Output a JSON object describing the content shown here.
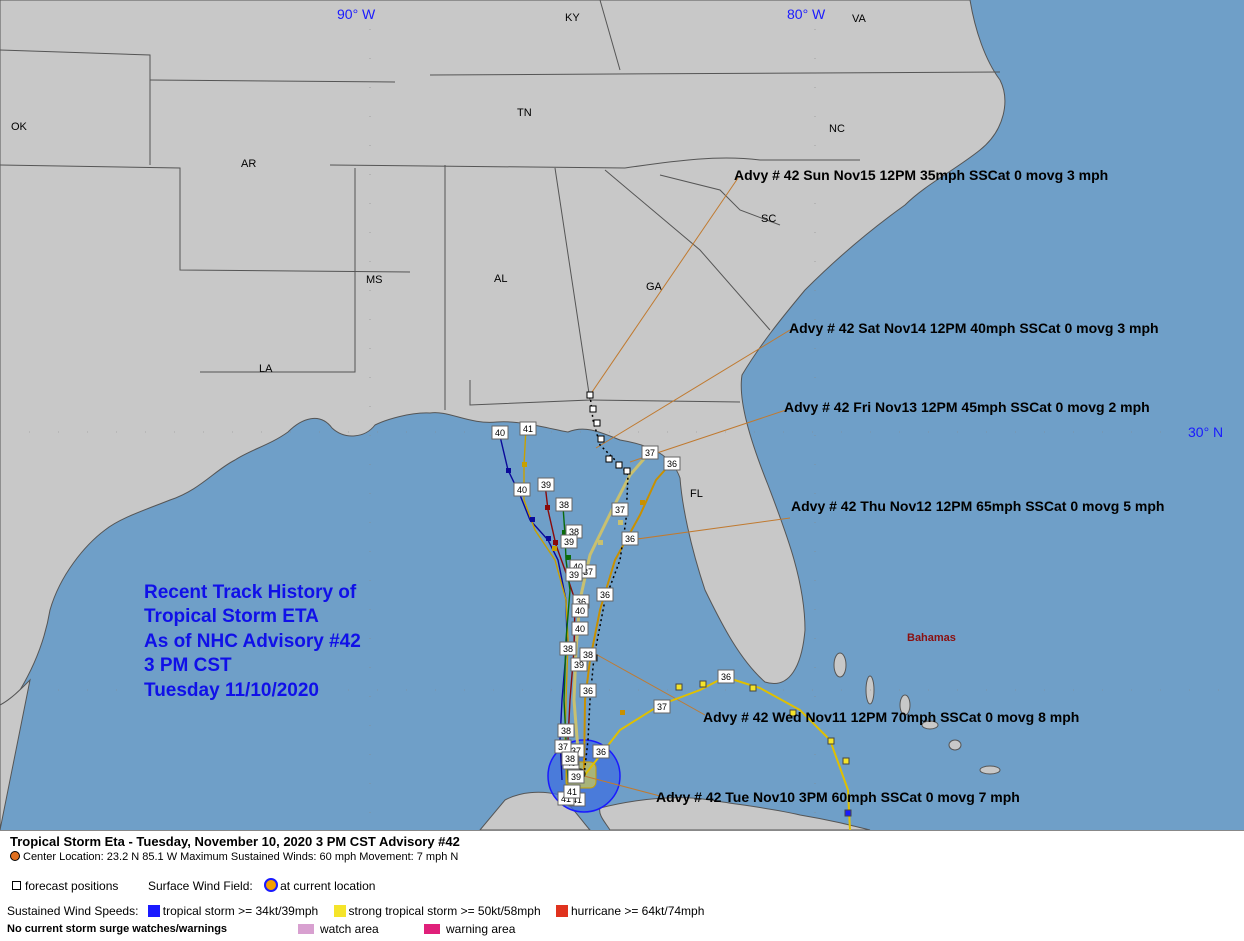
{
  "map": {
    "lon_labels": [
      "90° W",
      "80° W"
    ],
    "lat_labels": [
      "30° N"
    ],
    "state_labels": [
      "KY",
      "VA",
      "OK",
      "TN",
      "NC",
      "AR",
      "SC",
      "MS",
      "AL",
      "GA",
      "LA",
      "FL"
    ],
    "region_labels": [
      "Bahamas"
    ],
    "colors": {
      "ocean": "#6f9fc8",
      "land": "#c8c8c8",
      "border": "#555555",
      "title_text": "#1010e8",
      "forecast_line": "#c07a30"
    }
  },
  "title_block": {
    "line1": "Recent Track History of",
    "line2": "Tropical Storm ETA",
    "line3": "As of NHC Advisory #42",
    "line4": "3 PM CST",
    "line5": "Tuesday 11/10/2020"
  },
  "forecast_callouts": [
    "Advy # 42 Sun Nov15 12PM  35mph SSCat 0 movg 3 mph",
    "Advy # 42 Sat Nov14 12PM  40mph SSCat 0 movg 3 mph",
    "Advy # 42 Fri Nov13 12PM  45mph SSCat 0 movg 2 mph",
    "Advy # 42 Thu Nov12 12PM  65mph SSCat 0 movg 5 mph",
    "Advy # 42 Wed Nov11 12PM  70mph SSCat 0 movg 8 mph",
    "Advy # 42 Tue Nov10 3PM  60mph SSCat 0 movg 7 mph"
  ],
  "track_labels": [
    "40",
    "41",
    "40",
    "39",
    "38",
    "38",
    "37",
    "36",
    "36",
    "37",
    "37",
    "36",
    "36",
    "41",
    "38",
    "39",
    "40",
    "38",
    "37",
    "39",
    "40",
    "36",
    "36",
    "37",
    "38",
    "39",
    "40",
    "41",
    "36",
    "37",
    "38",
    "39",
    "40",
    "41"
  ],
  "legend": {
    "title": "Tropical Storm Eta  -  Tuesday, November 10, 2020  3 PM CST   Advisory #42",
    "center_text": "Center Location: 23.2 N  85.1 W   Maximum Sustained Winds: 60 mph  Movement: 7 mph N",
    "forecast_positions": "forecast positions",
    "wind_field_label": "Surface Wind Field:",
    "wind_field_value": "at current location",
    "speeds_label": "Sustained Wind Speeds:",
    "speed_ts": "tropical storm >= 34kt/39mph",
    "speed_sts": "strong tropical storm >= 50kt/58mph",
    "speed_hu": "hurricane >= 64kt/74mph",
    "surge": "No current storm surge watches/warnings",
    "watch": "watch area",
    "warning": "warning area",
    "colors": {
      "ts": "#1a1aff",
      "sts": "#f5e42a",
      "hu": "#e0321e",
      "watch": "#d8a0d0",
      "warning": "#e0207a"
    }
  }
}
